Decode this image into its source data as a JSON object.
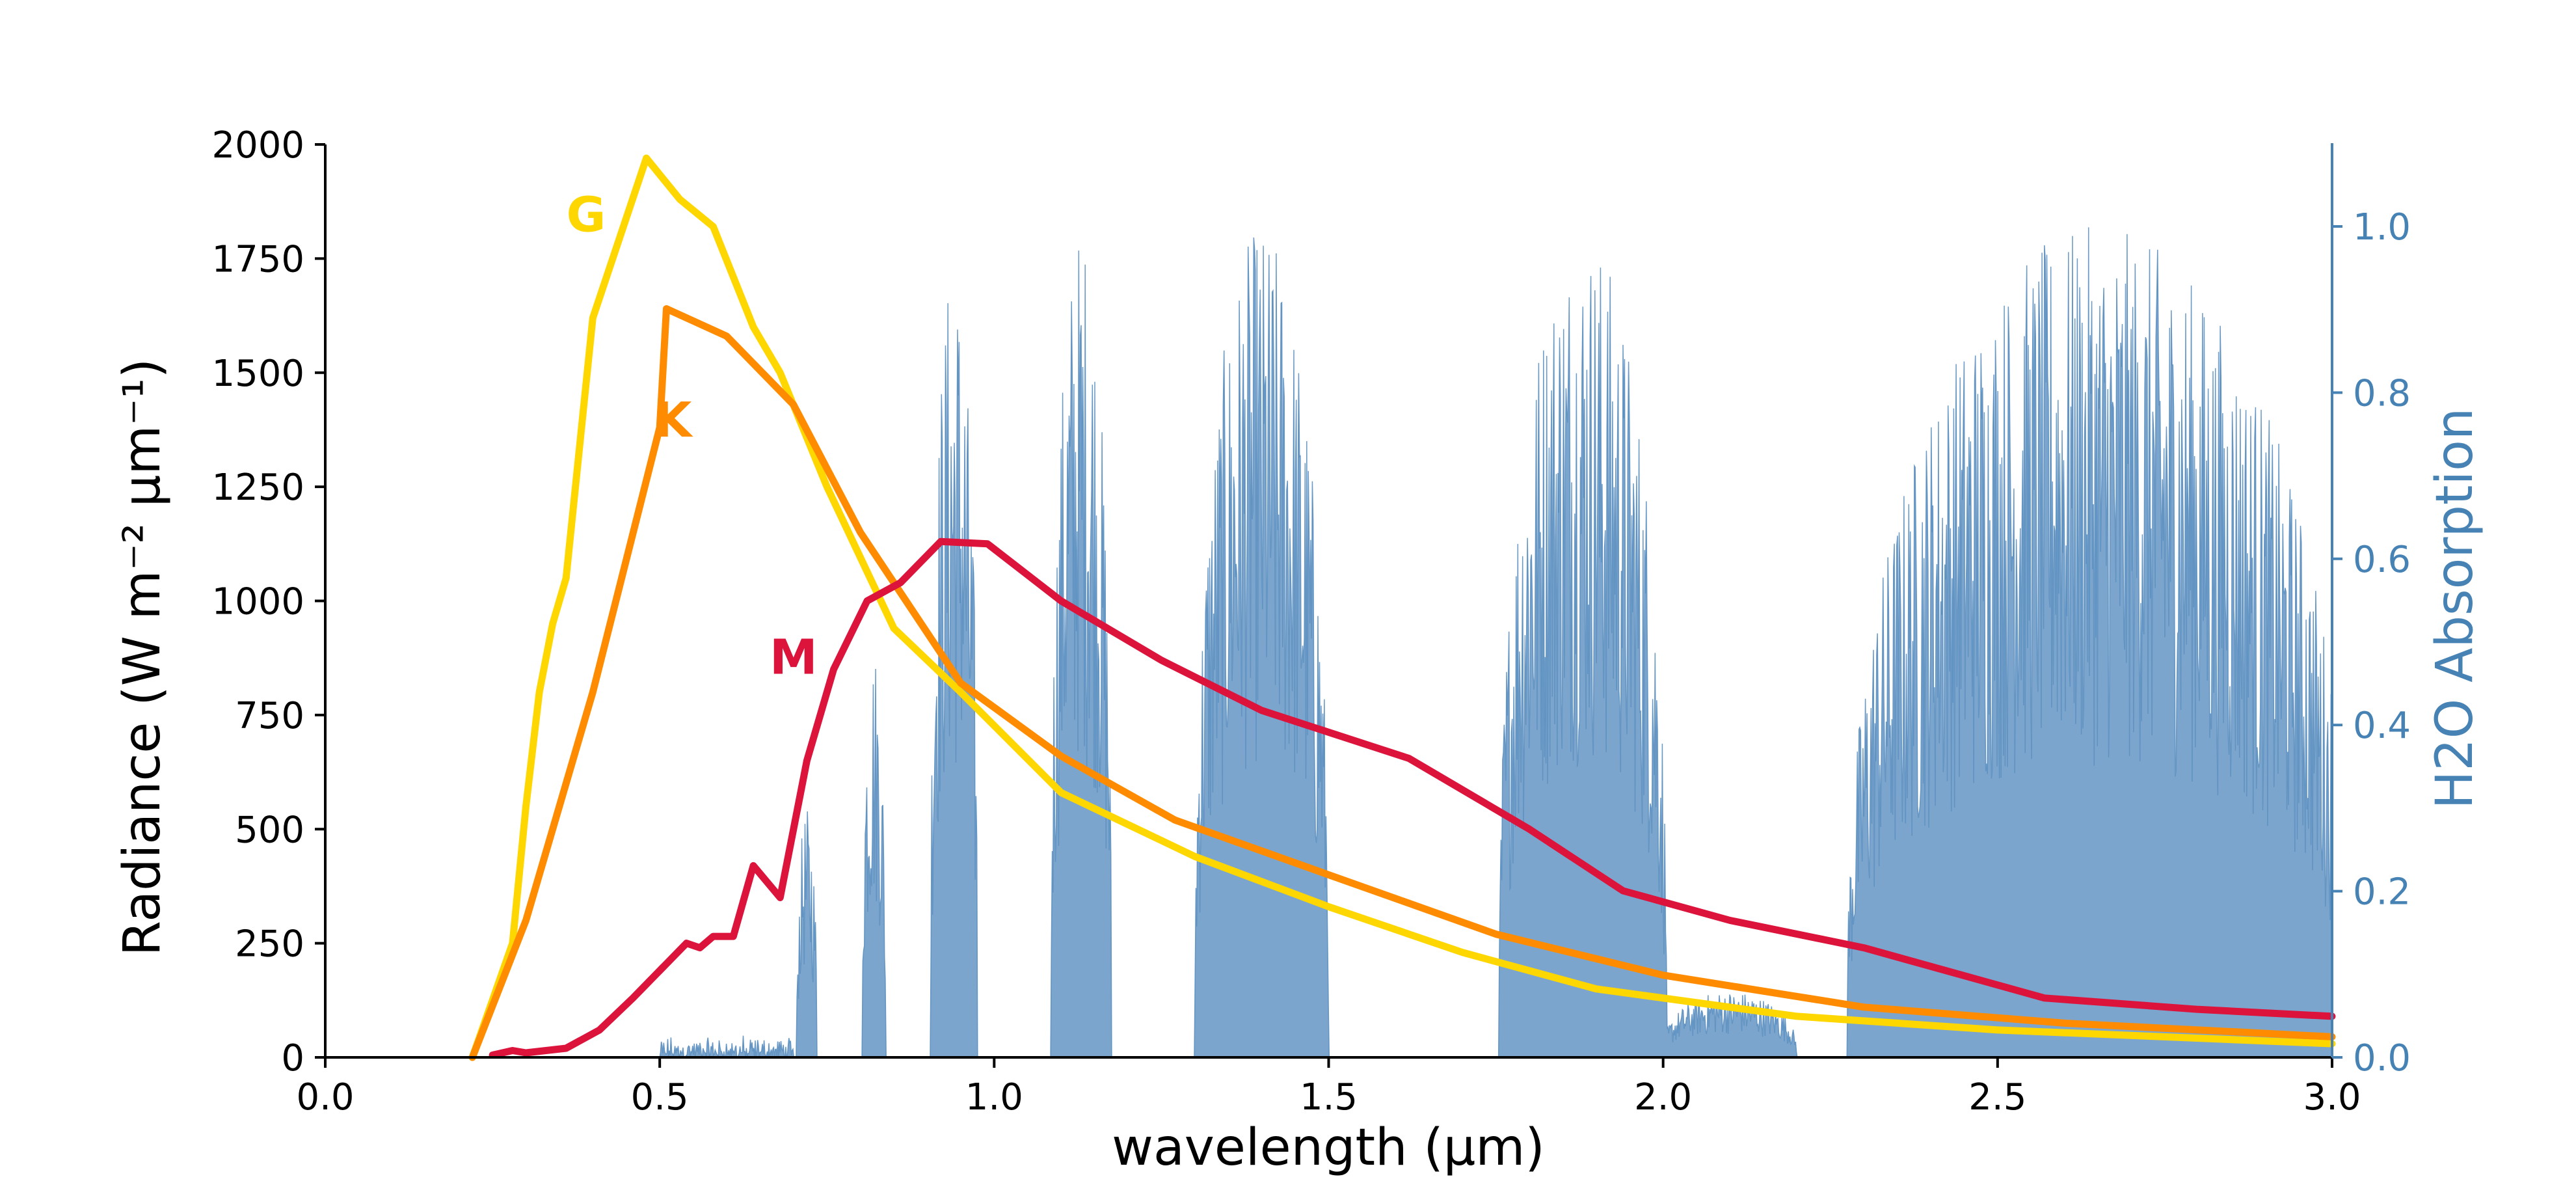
{
  "chart_data": {
    "type": "line",
    "title": "",
    "xlabel": "wavelength (μm)",
    "ylabel": "Radiance (W m⁻² μm⁻¹)",
    "ylabel_right": "H2O Absorption",
    "xlim": [
      0.0,
      3.0
    ],
    "ylim": [
      0,
      2000
    ],
    "ylim_right": [
      0.0,
      1.1
    ],
    "x_ticks": [
      "0.0",
      "0.5",
      "1.0",
      "1.5",
      "2.0",
      "2.5",
      "3.0"
    ],
    "y_ticks": [
      "0",
      "250",
      "500",
      "750",
      "1000",
      "1250",
      "1500",
      "1750",
      "2000"
    ],
    "y_ticks_right": [
      "0.0",
      "0.2",
      "0.4",
      "0.6",
      "0.8",
      "1.0"
    ],
    "grid": false,
    "legend": "none (series labeled inline)",
    "series": [
      {
        "name": "G",
        "color": "#ffd700",
        "points": [
          [
            0.22,
            0
          ],
          [
            0.28,
            250
          ],
          [
            0.3,
            550
          ],
          [
            0.32,
            800
          ],
          [
            0.34,
            950
          ],
          [
            0.36,
            1050
          ],
          [
            0.4,
            1620
          ],
          [
            0.48,
            1970
          ],
          [
            0.53,
            1880
          ],
          [
            0.58,
            1820
          ],
          [
            0.64,
            1600
          ],
          [
            0.68,
            1500
          ],
          [
            0.75,
            1250
          ],
          [
            0.85,
            940
          ],
          [
            0.95,
            800
          ],
          [
            1.1,
            580
          ],
          [
            1.3,
            440
          ],
          [
            1.5,
            330
          ],
          [
            1.7,
            230
          ],
          [
            1.9,
            150
          ],
          [
            2.2,
            90
          ],
          [
            2.5,
            60
          ],
          [
            3.0,
            30
          ]
        ]
      },
      {
        "name": "K",
        "color": "#ff8c00",
        "points": [
          [
            0.22,
            0
          ],
          [
            0.3,
            300
          ],
          [
            0.4,
            800
          ],
          [
            0.5,
            1380
          ],
          [
            0.51,
            1640
          ],
          [
            0.6,
            1580
          ],
          [
            0.7,
            1430
          ],
          [
            0.8,
            1150
          ],
          [
            0.95,
            820
          ],
          [
            1.1,
            660
          ],
          [
            1.27,
            520
          ],
          [
            1.5,
            400
          ],
          [
            1.75,
            270
          ],
          [
            2.0,
            180
          ],
          [
            2.3,
            110
          ],
          [
            2.6,
            75
          ],
          [
            3.0,
            45
          ]
        ]
      },
      {
        "name": "M",
        "color": "#dc143c",
        "points": [
          [
            0.25,
            5
          ],
          [
            0.28,
            15
          ],
          [
            0.3,
            10
          ],
          [
            0.36,
            20
          ],
          [
            0.41,
            60
          ],
          [
            0.46,
            130
          ],
          [
            0.52,
            220
          ],
          [
            0.54,
            250
          ],
          [
            0.56,
            240
          ],
          [
            0.58,
            265
          ],
          [
            0.61,
            265
          ],
          [
            0.64,
            420
          ],
          [
            0.68,
            350
          ],
          [
            0.72,
            650
          ],
          [
            0.76,
            850
          ],
          [
            0.81,
            1000
          ],
          [
            0.86,
            1040
          ],
          [
            0.92,
            1130
          ],
          [
            0.99,
            1125
          ],
          [
            1.1,
            1000
          ],
          [
            1.25,
            870
          ],
          [
            1.4,
            760
          ],
          [
            1.62,
            655
          ],
          [
            1.8,
            500
          ],
          [
            1.94,
            365
          ],
          [
            2.1,
            300
          ],
          [
            2.3,
            240
          ],
          [
            2.57,
            130
          ],
          [
            2.8,
            105
          ],
          [
            3.0,
            90
          ]
        ]
      }
    ],
    "absorption": {
      "name": "H2O Absorption",
      "color": "#5b8fc0",
      "bands": [
        {
          "center": 0.72,
          "width": 0.03,
          "peak": 0.3
        },
        {
          "center": 0.82,
          "width": 0.035,
          "peak": 0.5
        },
        {
          "center": 0.94,
          "width": 0.07,
          "peak": 0.96
        },
        {
          "center": 1.13,
          "width": 0.09,
          "peak": 1.0
        },
        {
          "center": 1.4,
          "width": 0.2,
          "peak": 1.0
        },
        {
          "center": 1.88,
          "width": 0.25,
          "peak": 1.0
        },
        {
          "center": 2.1,
          "width": 0.2,
          "peak": 0.08
        },
        {
          "center": 2.65,
          "width": 0.75,
          "peak": 1.0
        }
      ]
    },
    "annotations": [
      {
        "text": "G",
        "x": 0.39,
        "y": 1810,
        "color": "#ffd700"
      },
      {
        "text": "K",
        "x": 0.52,
        "y": 1360,
        "color": "#ff8c00"
      },
      {
        "text": "M",
        "x": 0.7,
        "y": 840,
        "color": "#dc143c"
      }
    ]
  }
}
